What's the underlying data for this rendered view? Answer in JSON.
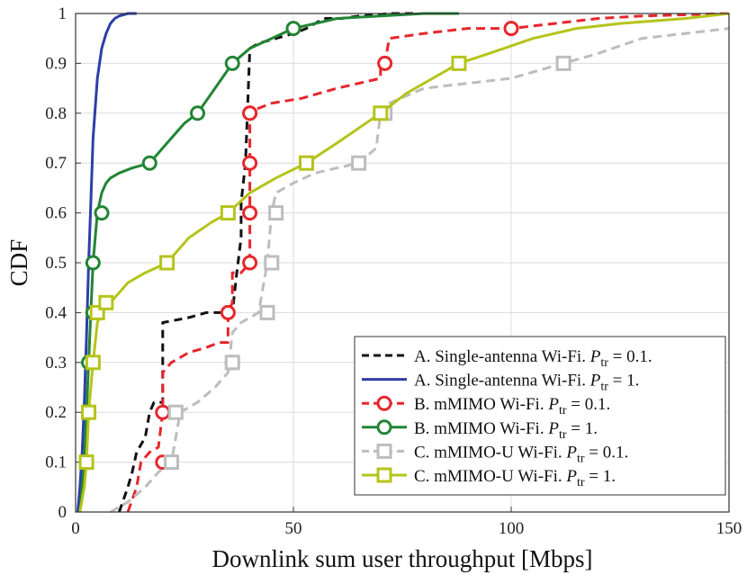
{
  "chart_data": {
    "type": "line",
    "title": "",
    "xlabel": "Downlink sum user throughput [Mbps]",
    "ylabel": "CDF",
    "xlim": [
      0,
      150
    ],
    "ylim": [
      0,
      1
    ],
    "x_ticks": [
      0,
      50,
      100,
      150
    ],
    "y_ticks": [
      0,
      0.1,
      0.2,
      0.3,
      0.4,
      0.5,
      0.6,
      0.7,
      0.8,
      0.9,
      1
    ],
    "x_tick_labels": [
      "0",
      "50",
      "100",
      "150"
    ],
    "y_tick_labels": [
      "0",
      "0.1",
      "0.2",
      "0.3",
      "0.4",
      "0.5",
      "0.6",
      "0.7",
      "0.8",
      "0.9",
      "1"
    ],
    "grid": true,
    "legend_position": "bottom-right",
    "series": [
      {
        "name_prefix": "A. Single-antenna Wi-Fi. ",
        "name_var": "P",
        "name_sub": "tr",
        "name_suffix": " = 0.1.",
        "color": "#111111",
        "dash": "9,6",
        "marker": "none",
        "x": [
          10,
          12,
          13,
          14,
          16,
          17,
          18,
          20,
          20,
          26,
          30,
          34,
          36,
          37,
          38,
          38,
          39,
          40,
          42,
          46,
          50,
          53,
          57,
          61,
          65,
          70,
          72,
          76,
          78
        ],
        "y": [
          0,
          0.05,
          0.08,
          0.12,
          0.15,
          0.2,
          0.22,
          0.22,
          0.38,
          0.39,
          0.4,
          0.4,
          0.4,
          0.48,
          0.55,
          0.62,
          0.7,
          0.93,
          0.94,
          0.95,
          0.96,
          0.97,
          0.99,
          0.99,
          0.995,
          0.998,
          1.0,
          1.0,
          1.0
        ],
        "markers": {
          "x": [],
          "y": []
        }
      },
      {
        "name_prefix": "A. Single-antenna Wi-Fi. ",
        "name_var": "P",
        "name_sub": "tr",
        "name_suffix": " = 1.",
        "color": "#2e3ea8",
        "dash": "",
        "marker": "none",
        "x": [
          0.5,
          1,
          1.5,
          2,
          2.5,
          3,
          3.5,
          4,
          5,
          6,
          7,
          8,
          9,
          10,
          12,
          14
        ],
        "y": [
          0,
          0.05,
          0.12,
          0.22,
          0.35,
          0.5,
          0.62,
          0.75,
          0.87,
          0.93,
          0.96,
          0.98,
          0.99,
          0.995,
          1.0,
          1.0
        ],
        "markers": {
          "x": [],
          "y": []
        }
      },
      {
        "name_prefix": "B. mMIMO Wi-Fi. ",
        "name_var": "P",
        "name_sub": "tr",
        "name_suffix": " = 0.1.",
        "color": "#e8262c",
        "dash": "10,6",
        "marker": "circle",
        "x": [
          12,
          14,
          15,
          17,
          19,
          20,
          20,
          21,
          22,
          24,
          26,
          30,
          33,
          35,
          35,
          36,
          36,
          38,
          40,
          40,
          42,
          45,
          52,
          56,
          60,
          65,
          70,
          70,
          71,
          72,
          80,
          90,
          100,
          110,
          120,
          130,
          150
        ],
        "y": [
          0,
          0.05,
          0.1,
          0.12,
          0.13,
          0.2,
          0.28,
          0.29,
          0.3,
          0.31,
          0.32,
          0.33,
          0.34,
          0.34,
          0.4,
          0.42,
          0.48,
          0.48,
          0.5,
          0.8,
          0.81,
          0.82,
          0.83,
          0.84,
          0.85,
          0.86,
          0.87,
          0.9,
          0.9,
          0.95,
          0.96,
          0.97,
          0.97,
          0.98,
          0.99,
          0.995,
          1.0
        ],
        "markers": {
          "x": [
            20,
            20,
            36,
            35,
            40,
            40,
            40,
            40,
            40,
            71,
            100
          ],
          "y": [
            0.1,
            0.2,
            0.3,
            0.4,
            0.5,
            0.6,
            0.7,
            0.8,
            0.8,
            0.9,
            0.97
          ]
        }
      },
      {
        "name_prefix": "B. mMIMO Wi-Fi. ",
        "name_var": "P",
        "name_sub": "tr",
        "name_suffix": " = 1.",
        "color": "#218534",
        "dash": "",
        "marker": "circle",
        "x": [
          1,
          1.5,
          2,
          2.5,
          3,
          3.5,
          4,
          4.5,
          5,
          6,
          7,
          8,
          10,
          13,
          17,
          21,
          25,
          28,
          32,
          36,
          40,
          45,
          50,
          55,
          60,
          70,
          80,
          88
        ],
        "y": [
          0,
          0.05,
          0.1,
          0.2,
          0.3,
          0.4,
          0.5,
          0.55,
          0.6,
          0.64,
          0.66,
          0.67,
          0.68,
          0.69,
          0.7,
          0.74,
          0.78,
          0.8,
          0.85,
          0.9,
          0.93,
          0.95,
          0.97,
          0.98,
          0.99,
          0.995,
          1.0,
          1.0
        ],
        "markers": {
          "x": [
            2.5,
            3,
            3,
            4,
            4,
            6,
            17,
            28,
            36,
            50
          ],
          "y": [
            0.1,
            0.2,
            0.3,
            0.4,
            0.5,
            0.6,
            0.7,
            0.8,
            0.9,
            0.97
          ]
        }
      },
      {
        "name_prefix": "C. mMIMO-U Wi-Fi. ",
        "name_var": "P",
        "name_sub": "tr",
        "name_suffix": " = 0.1.",
        "color": "#bdbdbd",
        "dash": "10,6",
        "marker": "square",
        "x": [
          8,
          12,
          16,
          19,
          22,
          24,
          28,
          32,
          35,
          36,
          38,
          42,
          44,
          45,
          46,
          50,
          55,
          60,
          65,
          69,
          70,
          72,
          80,
          90,
          100,
          112,
          120,
          130,
          140,
          150
        ],
        "y": [
          0,
          0.02,
          0.05,
          0.08,
          0.1,
          0.2,
          0.22,
          0.25,
          0.28,
          0.36,
          0.38,
          0.4,
          0.5,
          0.6,
          0.64,
          0.66,
          0.68,
          0.69,
          0.7,
          0.73,
          0.8,
          0.82,
          0.85,
          0.86,
          0.87,
          0.9,
          0.92,
          0.95,
          0.96,
          0.97
        ],
        "markers": {
          "x": [
            22,
            23,
            36,
            44,
            45,
            46,
            65,
            71,
            112
          ],
          "y": [
            0.1,
            0.2,
            0.3,
            0.4,
            0.5,
            0.6,
            0.7,
            0.8,
            0.9
          ]
        }
      },
      {
        "name_prefix": "C. mMIMO-U Wi-Fi. ",
        "name_var": "P",
        "name_sub": "tr",
        "name_suffix": " = 1.",
        "color": "#b5c41a",
        "dash": "",
        "marker": "square",
        "x": [
          1,
          2,
          2.5,
          3,
          3.5,
          4,
          5,
          6,
          8,
          10,
          12,
          16,
          21,
          26,
          31,
          35,
          40,
          46,
          53,
          60,
          65,
          70,
          76,
          82,
          88,
          95,
          105,
          115,
          125,
          140,
          150
        ],
        "y": [
          0,
          0.05,
          0.1,
          0.2,
          0.25,
          0.3,
          0.38,
          0.4,
          0.42,
          0.44,
          0.46,
          0.48,
          0.5,
          0.55,
          0.58,
          0.6,
          0.64,
          0.67,
          0.7,
          0.74,
          0.77,
          0.8,
          0.84,
          0.87,
          0.9,
          0.92,
          0.95,
          0.97,
          0.98,
          0.99,
          1.0
        ],
        "markers": {
          "x": [
            2.5,
            3,
            4,
            5,
            7,
            21,
            35,
            53,
            70,
            88
          ],
          "y": [
            0.1,
            0.2,
            0.3,
            0.4,
            0.42,
            0.5,
            0.6,
            0.7,
            0.8,
            0.9
          ]
        }
      }
    ]
  }
}
